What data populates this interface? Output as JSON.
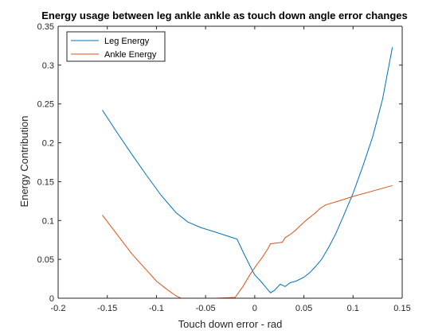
{
  "chart_data": {
    "type": "line",
    "title": "Energy usage between leg ankle ankle as touch down angle error changes",
    "xlabel": "Touch down error - rad",
    "ylabel": "Energy Contribution",
    "xlim": [
      -0.2,
      0.15
    ],
    "ylim": [
      0,
      0.35
    ],
    "xticks": [
      -0.2,
      -0.15,
      -0.1,
      -0.05,
      0,
      0.05,
      0.1,
      0.15
    ],
    "xtick_labels": [
      "-0.2",
      "-0.15",
      "-0.1",
      "-0.05",
      "0",
      "0.05",
      "0.1",
      "0.15"
    ],
    "yticks": [
      0,
      0.05,
      0.1,
      0.15,
      0.2,
      0.25,
      0.3,
      0.35
    ],
    "ytick_labels": [
      "0",
      "0.05",
      "0.1",
      "0.15",
      "0.2",
      "0.25",
      "0.3",
      "0.35"
    ],
    "grid": false,
    "legend_position": "top-left",
    "series": [
      {
        "name": "Leg Energy",
        "color": "#0072BD",
        "points": [
          [
            -0.155,
            0.242
          ],
          [
            -0.14,
            0.213
          ],
          [
            -0.125,
            0.185
          ],
          [
            -0.11,
            0.158
          ],
          [
            -0.095,
            0.132
          ],
          [
            -0.08,
            0.11
          ],
          [
            -0.068,
            0.098
          ],
          [
            -0.055,
            0.091
          ],
          [
            -0.04,
            0.085
          ],
          [
            -0.03,
            0.081
          ],
          [
            -0.018,
            0.076
          ],
          [
            -0.012,
            0.06
          ],
          [
            -0.005,
            0.042
          ],
          [
            0,
            0.03
          ],
          [
            0.006,
            0.022
          ],
          [
            0.012,
            0.013
          ],
          [
            0.016,
            0.007
          ],
          [
            0.02,
            0.01
          ],
          [
            0.026,
            0.018
          ],
          [
            0.031,
            0.015
          ],
          [
            0.036,
            0.02
          ],
          [
            0.042,
            0.022
          ],
          [
            0.05,
            0.027
          ],
          [
            0.056,
            0.033
          ],
          [
            0.062,
            0.041
          ],
          [
            0.068,
            0.05
          ],
          [
            0.075,
            0.065
          ],
          [
            0.082,
            0.082
          ],
          [
            0.09,
            0.105
          ],
          [
            0.1,
            0.135
          ],
          [
            0.11,
            0.17
          ],
          [
            0.12,
            0.208
          ],
          [
            0.13,
            0.256
          ],
          [
            0.14,
            0.323
          ]
        ]
      },
      {
        "name": "Ankle Energy",
        "color": "#D95319",
        "points": [
          [
            -0.155,
            0.107
          ],
          [
            -0.14,
            0.082
          ],
          [
            -0.125,
            0.057
          ],
          [
            -0.11,
            0.036
          ],
          [
            -0.1,
            0.022
          ],
          [
            -0.09,
            0.012
          ],
          [
            -0.08,
            0.003
          ],
          [
            -0.075,
            0.0
          ],
          [
            -0.06,
            0.0
          ],
          [
            -0.04,
            0.0
          ],
          [
            -0.02,
            0.001
          ],
          [
            -0.012,
            0.015
          ],
          [
            -0.004,
            0.032
          ],
          [
            0.002,
            0.043
          ],
          [
            0.008,
            0.053
          ],
          [
            0.013,
            0.063
          ],
          [
            0.016,
            0.07
          ],
          [
            0.022,
            0.071
          ],
          [
            0.028,
            0.072
          ],
          [
            0.031,
            0.078
          ],
          [
            0.036,
            0.082
          ],
          [
            0.041,
            0.087
          ],
          [
            0.046,
            0.093
          ],
          [
            0.052,
            0.1
          ],
          [
            0.058,
            0.106
          ],
          [
            0.062,
            0.11
          ],
          [
            0.066,
            0.115
          ],
          [
            0.072,
            0.12
          ],
          [
            0.085,
            0.125
          ],
          [
            0.1,
            0.131
          ],
          [
            0.12,
            0.138
          ],
          [
            0.14,
            0.145
          ]
        ]
      }
    ]
  }
}
